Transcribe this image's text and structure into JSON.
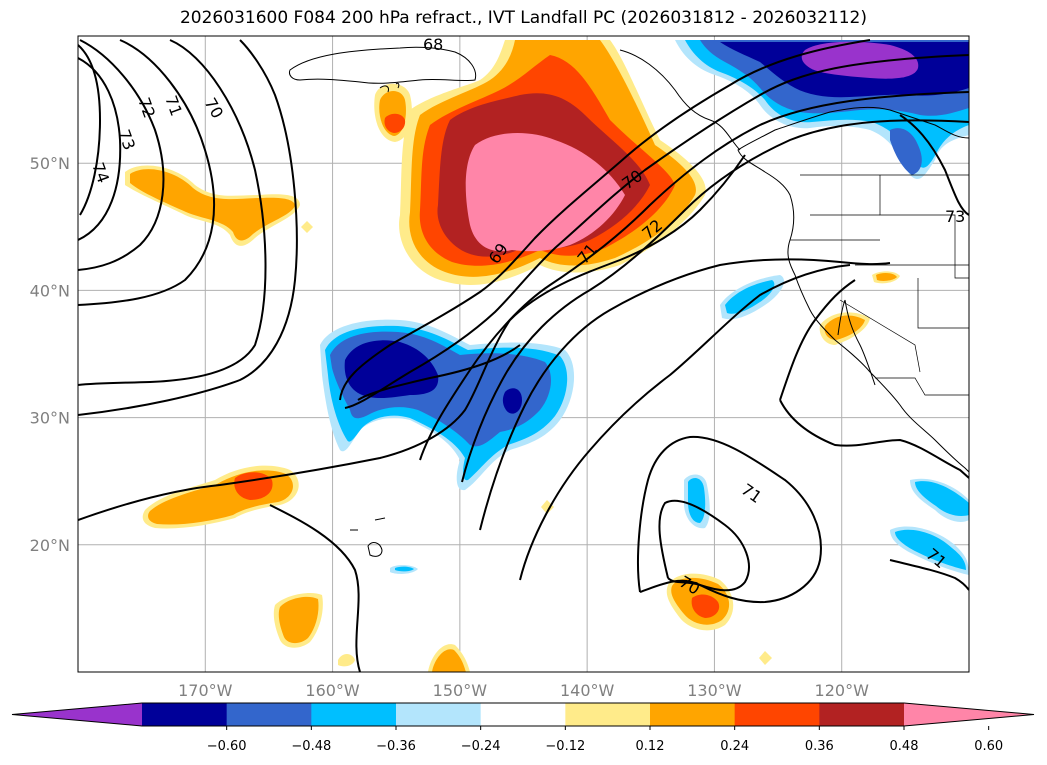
{
  "title": "2026031600 F084 200 hPa refract., IVT Landfall PC (2026031812 - 2026032112)",
  "lat_ticks": [
    {
      "label": "50°N",
      "lat": 50
    },
    {
      "label": "40°N",
      "lat": 40
    },
    {
      "label": "30°N",
      "lat": 30
    },
    {
      "label": "20°N",
      "lat": 20
    }
  ],
  "lon_ticks": [
    {
      "label": "170°W",
      "lon": -170
    },
    {
      "label": "160°W",
      "lon": -160
    },
    {
      "label": "150°W",
      "lon": -150
    },
    {
      "label": "140°W",
      "lon": -140
    },
    {
      "label": "130°W",
      "lon": -130
    },
    {
      "label": "120°W",
      "lon": -120
    }
  ],
  "contour_labels": [
    "74",
    "73",
    "72",
    "71",
    "70",
    "68",
    "69",
    "70",
    "71",
    "72",
    "71",
    "70",
    "71",
    "73"
  ],
  "colorbar": {
    "colors": [
      "#9933cc",
      "#000099",
      "#3366cc",
      "#00bfff",
      "#b3e5fc",
      "#ffffff",
      "#ffeb8a",
      "#ffa500",
      "#ff4500",
      "#b22222",
      "#ff85a8"
    ],
    "labels": [
      "−0.60",
      "−0.48",
      "−0.36",
      "−0.24",
      "−0.12",
      "0.12",
      "0.24",
      "0.36",
      "0.48",
      "0.60"
    ]
  },
  "legend_colors": {
    "purple": "#9933cc",
    "navy": "#000099",
    "blue": "#3366cc",
    "sky": "#00bfff",
    "pale_blue": "#b3e5fc",
    "yellow": "#ffeb8a",
    "orange": "#ffa500",
    "red_orange": "#ff4500",
    "dark_red": "#b22222",
    "pink": "#ff85a8"
  }
}
